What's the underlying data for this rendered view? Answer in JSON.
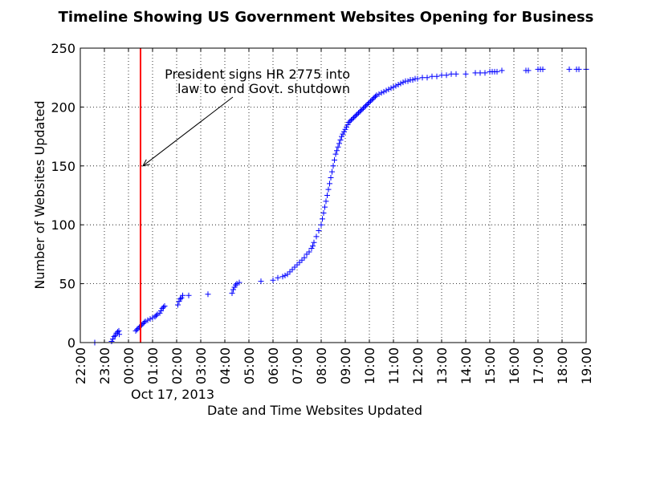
{
  "chart_data": {
    "type": "scatter",
    "title": "Timeline Showing US Government Websites Opening for Business",
    "xlabel": "Date and Time Websites Updated",
    "ylabel": "Number of Websites Updated",
    "date_label": "Oct 17, 2013",
    "x_unit": "hours since 22:00 (Oct 16, 2013)",
    "xlim": [
      0,
      21
    ],
    "ylim": [
      0,
      250
    ],
    "x_tick_labels": [
      "22:00",
      "23:00",
      "00:00",
      "01:00",
      "02:00",
      "03:00",
      "04:00",
      "05:00",
      "06:00",
      "07:00",
      "08:00",
      "09:00",
      "10:00",
      "11:00",
      "12:00",
      "13:00",
      "14:00",
      "15:00",
      "16:00",
      "17:00",
      "18:00",
      "19:00"
    ],
    "y_ticks": [
      0,
      50,
      100,
      150,
      200,
      250
    ],
    "grid": true,
    "marker": "+",
    "series_color": "#0000ff",
    "vline": {
      "x": 2.5,
      "color": "#ff0000"
    },
    "annotation": {
      "lines": [
        "President signs HR 2775 into",
        "law to end Govt. shutdown"
      ],
      "arrow_to": {
        "x": 2.6,
        "y": 150
      }
    },
    "points": {
      "x": [
        0.6,
        1.3,
        1.35,
        1.4,
        1.45,
        1.5,
        1.55,
        1.6,
        1.62,
        2.3,
        2.35,
        2.4,
        2.45,
        2.5,
        2.55,
        2.6,
        2.65,
        2.7,
        2.8,
        2.9,
        3.0,
        3.1,
        3.15,
        3.2,
        3.3,
        3.35,
        3.4,
        3.45,
        3.5,
        4.05,
        4.1,
        4.15,
        4.2,
        4.25,
        4.5,
        5.3,
        6.3,
        6.35,
        6.4,
        6.45,
        6.5,
        6.6,
        7.5,
        8.0,
        8.2,
        8.4,
        8.5,
        8.6,
        8.7,
        8.8,
        8.9,
        9.0,
        9.1,
        9.2,
        9.3,
        9.4,
        9.5,
        9.6,
        9.65,
        9.7,
        9.8,
        9.9,
        10.0,
        10.05,
        10.1,
        10.15,
        10.2,
        10.25,
        10.3,
        10.35,
        10.4,
        10.45,
        10.5,
        10.55,
        10.6,
        10.65,
        10.7,
        10.75,
        10.8,
        10.85,
        10.9,
        10.95,
        11.0,
        11.05,
        11.1,
        11.15,
        11.2,
        11.25,
        11.3,
        11.35,
        11.4,
        11.45,
        11.5,
        11.55,
        11.6,
        11.65,
        11.7,
        11.75,
        11.8,
        11.85,
        11.9,
        11.95,
        12.0,
        12.05,
        12.1,
        12.15,
        12.2,
        12.25,
        12.3,
        12.4,
        12.5,
        12.6,
        12.7,
        12.8,
        12.9,
        13.0,
        13.1,
        13.2,
        13.3,
        13.4,
        13.5,
        13.6,
        13.7,
        13.8,
        13.9,
        14.0,
        14.2,
        14.4,
        14.6,
        14.8,
        15.0,
        15.2,
        15.4,
        15.6,
        16.0,
        16.4,
        16.6,
        16.8,
        17.0,
        17.1,
        17.2,
        17.3,
        17.5,
        18.5,
        18.6,
        19.0,
        19.1,
        19.2,
        20.3,
        20.6,
        20.7,
        21.0
      ],
      "y": [
        0,
        1,
        3,
        5,
        6,
        8,
        9,
        10,
        7,
        10,
        11,
        12,
        13,
        14,
        15,
        16,
        17,
        18,
        19,
        20,
        21,
        22,
        23,
        24,
        25,
        27,
        29,
        30,
        31,
        32,
        35,
        37,
        38,
        40,
        40,
        41,
        42,
        45,
        47,
        49,
        50,
        51,
        52,
        53,
        55,
        56,
        57,
        58,
        60,
        62,
        64,
        66,
        68,
        70,
        72,
        75,
        77,
        80,
        82,
        85,
        90,
        95,
        100,
        105,
        110,
        115,
        120,
        125,
        130,
        135,
        140,
        145,
        150,
        155,
        160,
        163,
        166,
        169,
        172,
        175,
        177,
        179,
        181,
        183,
        185,
        187,
        188,
        189,
        190,
        191,
        192,
        193,
        194,
        195,
        196,
        197,
        198,
        199,
        200,
        201,
        202,
        203,
        204,
        205,
        206,
        207,
        208,
        209,
        210,
        211,
        212,
        213,
        214,
        215,
        216,
        217,
        218,
        219,
        220,
        221,
        222,
        222,
        223,
        223,
        224,
        224,
        225,
        225,
        226,
        226,
        227,
        227,
        228,
        228,
        228,
        229,
        229,
        229,
        230,
        230,
        230,
        230,
        231,
        231,
        231,
        232,
        232,
        232,
        232,
        232,
        232,
        232
      ],
      "note": ""
    }
  }
}
